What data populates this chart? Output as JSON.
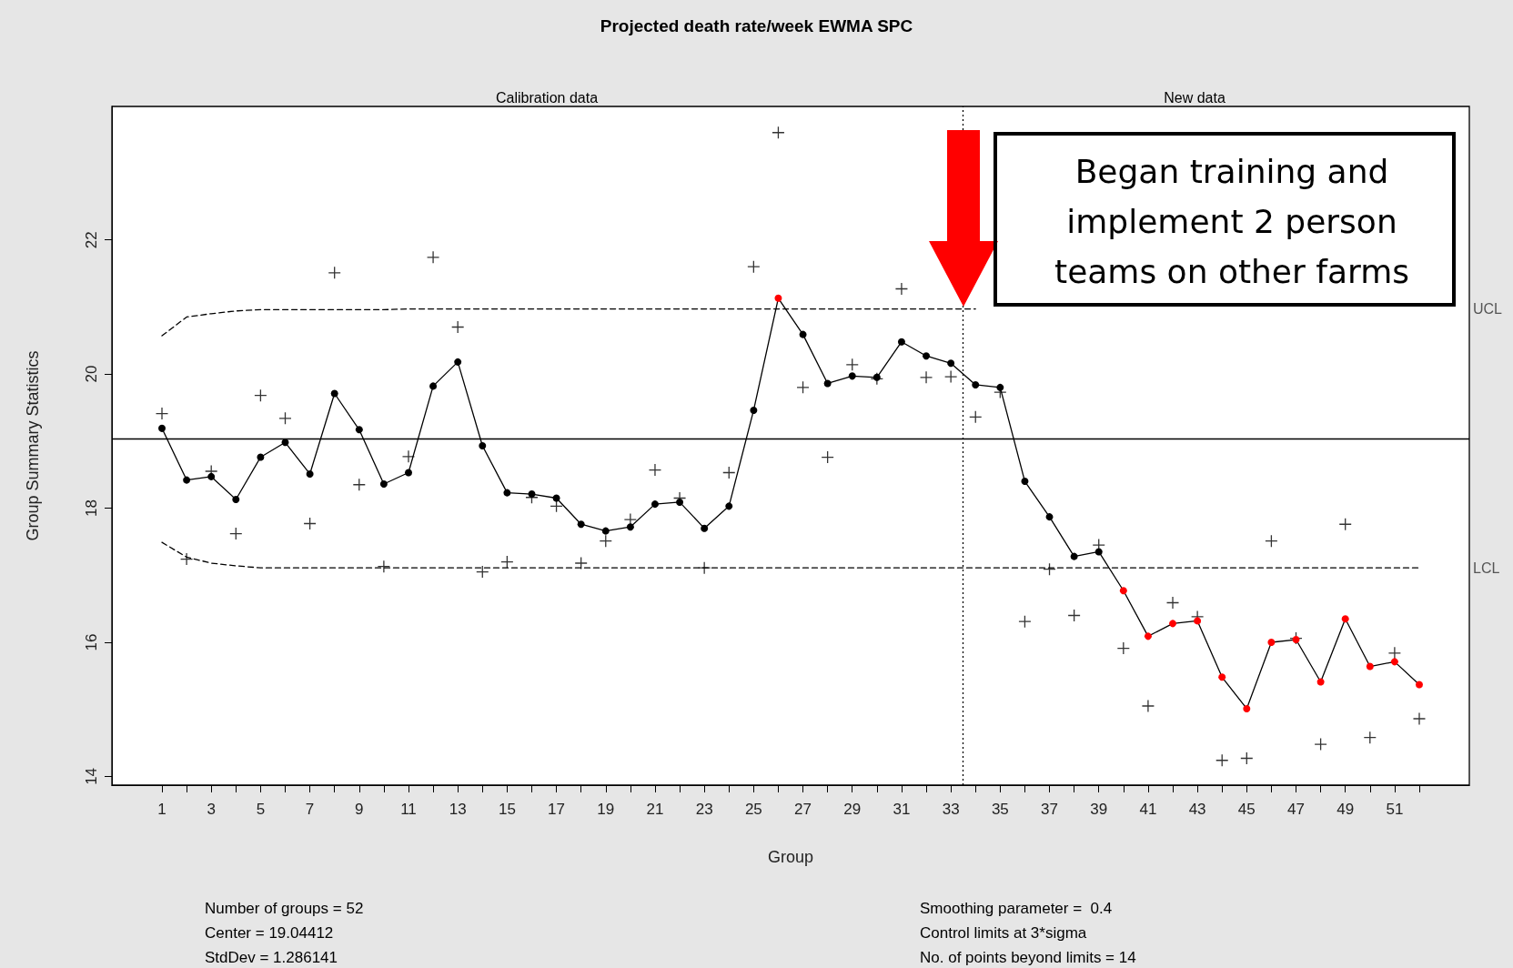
{
  "chart_data": {
    "type": "line",
    "title": "Projected death rate/week EWMA SPC",
    "xlabel": "Group",
    "ylabel": "Group Summary Statistics",
    "x": [
      1,
      2,
      3,
      4,
      5,
      6,
      7,
      8,
      9,
      10,
      11,
      12,
      13,
      14,
      15,
      16,
      17,
      18,
      19,
      20,
      21,
      22,
      23,
      24,
      25,
      26,
      27,
      28,
      29,
      30,
      31,
      32,
      33,
      34,
      35,
      36,
      37,
      38,
      39,
      40,
      41,
      42,
      43,
      44,
      45,
      46,
      47,
      48,
      49,
      50,
      51,
      52
    ],
    "xlim": [
      -1.03,
      54.03
    ],
    "xticks": [
      1,
      {
        "value": 2,
        "label": null
      },
      3,
      {
        "value": 4,
        "label": null
      },
      5,
      {
        "value": 6,
        "label": null
      },
      7,
      {
        "value": 8,
        "label": null
      },
      9,
      {
        "value": 10,
        "label": null
      },
      11,
      {
        "value": 12,
        "label": null
      },
      13,
      {
        "value": 14,
        "label": null
      },
      15,
      {
        "value": 16,
        "label": null
      },
      17,
      {
        "value": 18,
        "label": null
      },
      19,
      {
        "value": 20,
        "label": null
      },
      21,
      {
        "value": 22,
        "label": null
      },
      23,
      {
        "value": 24,
        "label": null
      },
      25,
      {
        "value": 26,
        "label": null
      },
      27,
      {
        "value": 28,
        "label": null
      },
      29,
      {
        "value": 30,
        "label": null
      },
      31,
      {
        "value": 32,
        "label": null
      },
      33,
      {
        "value": 34,
        "label": null
      },
      35,
      {
        "value": 36,
        "label": null
      },
      37,
      {
        "value": 38,
        "label": null
      },
      39,
      {
        "value": 40,
        "label": null
      },
      41,
      {
        "value": 42,
        "label": null
      },
      43,
      {
        "value": 44,
        "label": null
      },
      45,
      {
        "value": 46,
        "label": null
      },
      47,
      {
        "value": 48,
        "label": null
      },
      49,
      {
        "value": 50,
        "label": null
      },
      51,
      {
        "value": 52,
        "label": null
      }
    ],
    "ylim": [
      13.87,
      23.99
    ],
    "yticks": [
      14,
      16,
      18,
      20,
      22
    ],
    "series": [
      {
        "type": "scatter",
        "marker": "cross",
        "color": "#000000",
        "values": [
          19.41,
          17.24,
          18.55,
          17.62,
          19.68,
          19.34,
          17.77,
          21.51,
          18.35,
          17.13,
          18.77,
          21.74,
          20.7,
          17.05,
          17.2,
          18.16,
          18.03,
          17.18,
          17.51,
          17.83,
          18.57,
          18.15,
          17.11,
          18.53,
          21.6,
          23.6,
          19.8,
          18.76,
          20.14,
          19.93,
          21.27,
          19.95,
          19.96,
          19.36,
          19.73,
          16.31,
          17.09,
          16.4,
          17.45,
          15.91,
          15.05,
          16.59,
          16.38,
          14.24,
          14.27,
          17.51,
          16.06,
          14.48,
          17.76,
          14.58,
          15.84,
          14.86
        ]
      },
      {
        "type": "line",
        "marker": "circle",
        "line_style": "solid",
        "color": "#000000",
        "values": [
          19.19,
          18.42,
          18.47,
          18.13,
          18.76,
          18.98,
          18.51,
          19.71,
          19.17,
          18.36,
          18.53,
          19.82,
          20.18,
          18.93,
          18.23,
          18.21,
          18.15,
          17.76,
          17.66,
          17.72,
          18.06,
          18.09,
          17.7,
          18.03,
          19.46,
          21.13,
          20.59,
          19.86,
          19.97,
          19.95,
          20.48,
          20.27,
          20.16,
          19.84,
          19.8,
          18.4,
          17.87,
          17.28,
          17.35,
          16.77,
          16.09,
          16.28,
          16.32,
          15.48,
          15.01,
          16.0,
          16.04,
          15.41,
          16.35,
          15.64,
          15.71,
          15.37
        ],
        "colors": [
          "#000000",
          "#000000",
          "#000000",
          "#000000",
          "#000000",
          "#000000",
          "#000000",
          "#000000",
          "#000000",
          "#000000",
          "#000000",
          "#000000",
          "#000000",
          "#000000",
          "#000000",
          "#000000",
          "#000000",
          "#000000",
          "#000000",
          "#000000",
          "#000000",
          "#000000",
          "#000000",
          "#000000",
          "#000000",
          "#ff0000",
          "#000000",
          "#000000",
          "#000000",
          "#000000",
          "#000000",
          "#000000",
          "#000000",
          "#000000",
          "#000000",
          "#000000",
          "#000000",
          "#000000",
          "#000000",
          "#ff0000",
          "#ff0000",
          "#ff0000",
          "#ff0000",
          "#ff0000",
          "#ff0000",
          "#ff0000",
          "#ff0000",
          "#ff0000",
          "#ff0000",
          "#ff0000",
          "#ff0000",
          "#ff0000"
        ]
      },
      {
        "type": "line",
        "name": "UCL",
        "marker": "none",
        "line_style": "dashed",
        "color": "#000000",
        "values": [
          20.57,
          20.85,
          20.9,
          20.94,
          20.96,
          20.96,
          20.96,
          20.96,
          20.96,
          20.96,
          20.97,
          20.97,
          20.97,
          20.97,
          20.97,
          20.97,
          20.97,
          20.97,
          20.97,
          20.97,
          20.97,
          20.97,
          20.97,
          20.97,
          20.97,
          20.97,
          20.97,
          20.97,
          20.97,
          20.97,
          20.97,
          20.97,
          20.97,
          20.97,
          null,
          null,
          null,
          null,
          null,
          null,
          null,
          null,
          null,
          null,
          null,
          null,
          null,
          null,
          null,
          null,
          null,
          null
        ]
      },
      {
        "type": "line",
        "name": "LCL",
        "marker": "none",
        "line_style": "dashed",
        "color": "#000000",
        "values": [
          17.49,
          17.27,
          17.18,
          17.14,
          17.11,
          17.11,
          17.11,
          17.11,
          17.11,
          17.11,
          17.11,
          17.11,
          17.11,
          17.11,
          17.11,
          17.11,
          17.11,
          17.11,
          17.11,
          17.11,
          17.11,
          17.11,
          17.11,
          17.11,
          17.11,
          17.11,
          17.11,
          17.11,
          17.11,
          17.11,
          17.11,
          17.11,
          17.11,
          17.11,
          17.11,
          17.11,
          17.11,
          17.11,
          17.11,
          17.11,
          17.11,
          17.11,
          17.11,
          17.11,
          17.11,
          17.11,
          17.11,
          17.11,
          17.11,
          17.11,
          17.11,
          17.11
        ]
      }
    ],
    "ref_lines": [
      {
        "axis": "y",
        "value": 19.04412,
        "line_style": "solid",
        "color": "#000000"
      },
      {
        "axis": "x",
        "value": 33.5,
        "line_style": "dotted",
        "color": "#000000"
      }
    ],
    "annotations": [
      "Calibration data",
      "New data",
      "Began training and\nimplement 2 person\nteams on other farms",
      "Number of groups = 52",
      "Center = 19.04412",
      "StdDev = 1.286141",
      "Smoothing parameter =  0.4",
      "Control limits at 3*sigma",
      "No. of points beyond limits = 14"
    ],
    "grid": false,
    "legend": false
  }
}
